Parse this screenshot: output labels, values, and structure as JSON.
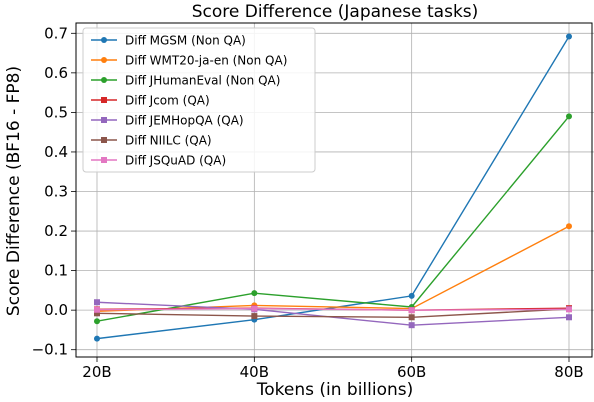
{
  "chart_data": {
    "type": "line",
    "title": "Score Difference (Japanese tasks)",
    "xlabel": "Tokens (in billions)",
    "ylabel": "Score Difference (BF16 - FP8)",
    "categories": [
      "20B",
      "40B",
      "60B",
      "80B"
    ],
    "ylim": [
      -0.1,
      0.7
    ],
    "yticks": [
      "−0.1",
      "0.0",
      "0.1",
      "0.2",
      "0.3",
      "0.4",
      "0.5",
      "0.6",
      "0.7"
    ],
    "ytick_values": [
      -0.1,
      0.0,
      0.1,
      0.2,
      0.3,
      0.4,
      0.5,
      0.6,
      0.7
    ],
    "grid": true,
    "legend_position": "top-left",
    "series": [
      {
        "name": "Diff MGSM (Non QA)",
        "color": "#1f77b4",
        "marker": "circle",
        "values": [
          -0.072,
          -0.024,
          0.036,
          0.692
        ]
      },
      {
        "name": "Diff WMT20-ja-en (Non QA)",
        "color": "#ff7f0e",
        "marker": "circle",
        "values": [
          -0.003,
          0.012,
          0.004,
          0.212
        ]
      },
      {
        "name": "Diff JHumanEval (Non QA)",
        "color": "#2ca02c",
        "marker": "circle",
        "values": [
          -0.028,
          0.043,
          0.008,
          0.49
        ]
      },
      {
        "name": "Diff Jcom (QA)",
        "color": "#d62728",
        "marker": "square",
        "values": [
          0.002,
          0.005,
          0.0,
          0.005
        ]
      },
      {
        "name": "Diff JEMHopQA (QA)",
        "color": "#9467bd",
        "marker": "square",
        "values": [
          0.02,
          0.002,
          -0.038,
          -0.018
        ]
      },
      {
        "name": "Diff NIILC (QA)",
        "color": "#8c564b",
        "marker": "square",
        "values": [
          -0.008,
          -0.015,
          -0.018,
          0.003
        ]
      },
      {
        "name": "Diff JSQuAD (QA)",
        "color": "#e377c2",
        "marker": "square",
        "values": [
          0.001,
          0.004,
          0.0,
          0.002
        ]
      }
    ]
  }
}
